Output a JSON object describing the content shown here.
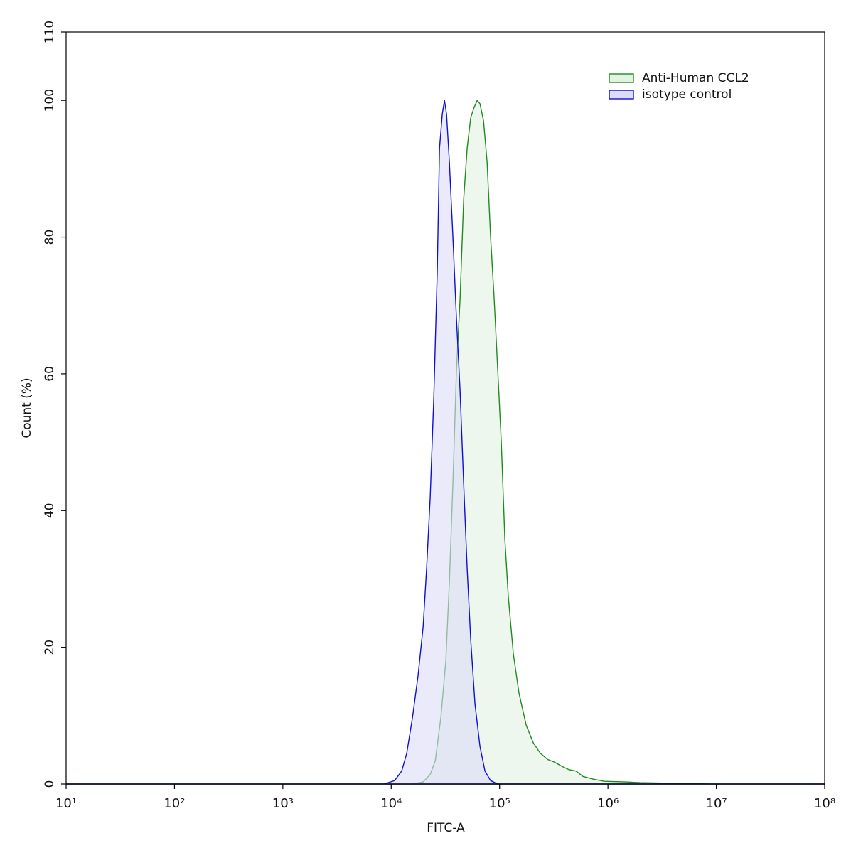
{
  "chart_data": {
    "type": "histogram-overlay",
    "x_label": "FITC-A",
    "y_label": "Count  (%)",
    "xscale": "log",
    "xlim": [
      10,
      100000000
    ],
    "ylim": [
      0,
      110
    ],
    "xticks": [
      {
        "value": 10,
        "label": "10¹"
      },
      {
        "value": 100,
        "label": "10²"
      },
      {
        "value": 1000,
        "label": "10³"
      },
      {
        "value": 10000,
        "label": "10⁴"
      },
      {
        "value": 100000,
        "label": "10⁵"
      },
      {
        "value": 1000000,
        "label": "10⁶"
      },
      {
        "value": 10000000,
        "label": "10⁷"
      },
      {
        "value": 100000000,
        "label": "10⁸"
      }
    ],
    "yticks": [
      0,
      20,
      40,
      60,
      80,
      100,
      110
    ],
    "legend_position": "upper right",
    "series": [
      {
        "name": "Anti-Human CCL2",
        "color": "#1f8a1f",
        "fill": "#e3f2e3",
        "x": [
          10,
          15700,
          19700,
          22900,
          25500,
          28700,
          31900,
          34400,
          37100,
          40000,
          43200,
          46600,
          50200,
          54200,
          58300,
          62100,
          65900,
          71100,
          76700,
          82600,
          89100,
          96100,
          103700,
          111900,
          120500,
          134000,
          151000,
          176000,
          205000,
          238000,
          277000,
          322000,
          375000,
          436000,
          507000,
          589000,
          739000,
          927000,
          1460000,
          1970000,
          4200000,
          8930000,
          100000000
        ],
        "values": [
          0,
          0,
          0.3,
          1.4,
          3.4,
          9.7,
          18,
          29.5,
          44,
          60.6,
          71,
          85.5,
          93,
          97.5,
          99,
          100,
          99.5,
          97,
          91,
          80,
          71,
          60.6,
          50,
          35.7,
          27.3,
          19,
          13.3,
          8.6,
          6,
          4.5,
          3.6,
          3.2,
          2.6,
          2.1,
          1.9,
          1.1,
          0.7,
          0.4,
          0.3,
          0.2,
          0.1,
          0,
          0
        ]
      },
      {
        "name": "isotype control",
        "color": "#1010d0",
        "fill": "#dcdcf8",
        "x": [
          10,
          8570,
          10740,
          12500,
          13900,
          15700,
          17700,
          19700,
          21200,
          22900,
          24700,
          26600,
          27900,
          29600,
          31000,
          32400,
          34400,
          37100,
          40000,
          43200,
          46600,
          50200,
          54200,
          59300,
          65900,
          73300,
          82600,
          96100,
          100000000
        ],
        "values": [
          0,
          0,
          0.5,
          1.9,
          4.5,
          9.7,
          15.9,
          23,
          31.5,
          42,
          56.4,
          75,
          93,
          98,
          100,
          98,
          91,
          80,
          68,
          57.5,
          44,
          31.5,
          21,
          11.7,
          5.5,
          1.9,
          0.5,
          0,
          0
        ]
      }
    ]
  }
}
